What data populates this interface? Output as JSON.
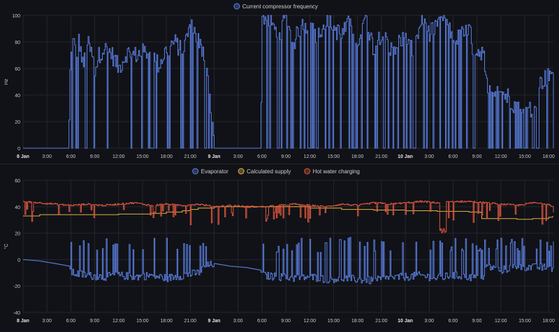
{
  "chart_data": [
    {
      "type": "line",
      "ylabel": "Hz",
      "ylim": [
        0,
        100
      ],
      "yticks": [
        0,
        20,
        40,
        60,
        80,
        100
      ],
      "xtick_labels": [
        "8 Jan",
        "3:00",
        "6:00",
        "9:00",
        "12:00",
        "15:00",
        "18:00",
        "21:00",
        "9 Jan",
        "3:00",
        "6:00",
        "9:00",
        "12:00",
        "15:00",
        "18:00",
        "21:00",
        "10 Jan",
        "3:00",
        "6:00",
        "9:00",
        "12:00",
        "15:00",
        "18:00"
      ],
      "xtick_hours": [
        0,
        3,
        6,
        9,
        12,
        15,
        18,
        21,
        24,
        27,
        30,
        33,
        36,
        39,
        42,
        45,
        48,
        51,
        54,
        57,
        60,
        63,
        66
      ],
      "xlim_hours": [
        0,
        66.6
      ],
      "legend_position": "top-center",
      "series": [
        {
          "name": "Current compressor frequency",
          "color": "#5b7fe0",
          "pattern": "compressor",
          "points": [
            [
              0,
              0
            ],
            [
              5.7,
              0
            ],
            [
              5.8,
              40
            ],
            [
              6.0,
              70
            ],
            [
              6.3,
              82
            ],
            [
              6.6,
              68
            ],
            [
              7.0,
              82
            ],
            [
              7.5,
              60
            ],
            [
              8.0,
              80
            ],
            [
              8.5,
              72
            ],
            [
              9.0,
              60
            ],
            [
              9.5,
              70
            ],
            [
              10.0,
              75
            ],
            [
              11,
              72
            ],
            [
              12,
              60
            ],
            [
              13,
              72
            ],
            [
              14,
              70
            ],
            [
              15,
              72
            ],
            [
              16,
              74
            ],
            [
              17,
              62
            ],
            [
              18,
              75
            ],
            [
              19,
              80
            ],
            [
              20,
              72
            ],
            [
              21,
              95
            ],
            [
              22,
              80
            ],
            [
              23,
              65
            ],
            [
              24,
              0
            ],
            [
              29.8,
              0
            ],
            [
              30,
              100
            ],
            [
              31,
              95
            ],
            [
              32,
              85
            ],
            [
              33,
              98
            ],
            [
              34,
              80
            ],
            [
              35,
              95
            ],
            [
              36,
              90
            ],
            [
              37,
              85
            ],
            [
              38,
              98
            ],
            [
              39,
              90
            ],
            [
              40,
              85
            ],
            [
              41,
              95
            ],
            [
              42,
              80
            ],
            [
              43,
              98
            ],
            [
              44,
              75
            ],
            [
              45,
              88
            ],
            [
              46,
              72
            ],
            [
              47,
              80
            ],
            [
              48,
              85
            ],
            [
              49,
              70
            ],
            [
              50,
              98
            ],
            [
              51,
              85
            ],
            [
              52,
              95
            ],
            [
              53,
              98
            ],
            [
              54,
              80
            ],
            [
              55,
              85
            ],
            [
              56,
              90
            ],
            [
              56.5,
              73
            ],
            [
              57.8,
              73
            ],
            [
              58,
              50
            ],
            [
              59,
              45
            ],
            [
              60,
              42
            ],
            [
              61,
              38
            ],
            [
              62,
              30
            ],
            [
              63,
              25
            ],
            [
              64,
              32
            ],
            [
              65,
              50
            ],
            [
              66,
              55
            ],
            [
              66.5,
              60
            ]
          ]
        }
      ]
    },
    {
      "type": "line",
      "ylabel": "°C",
      "ylim": [
        -40,
        60
      ],
      "yticks": [
        -40,
        -20,
        0,
        20,
        40,
        60
      ],
      "xtick_labels": [
        "8 Jan",
        "3:00",
        "6:00",
        "9:00",
        "12:00",
        "15:00",
        "18:00",
        "21:00",
        "9 Jan",
        "3:00",
        "6:00",
        "9:00",
        "12:00",
        "15:00",
        "18:00",
        "21:00",
        "10 Jan",
        "3:00",
        "6:00",
        "9:00",
        "12:00",
        "15:00",
        "18:00"
      ],
      "xtick_hours": [
        0,
        3,
        6,
        9,
        12,
        15,
        18,
        21,
        24,
        27,
        30,
        33,
        36,
        39,
        42,
        45,
        48,
        51,
        54,
        57,
        60,
        63,
        66
      ],
      "xlim_hours": [
        0,
        66.6
      ],
      "legend_position": "top-center",
      "series": [
        {
          "name": "Evaporator",
          "color": "#5b7fe0",
          "pattern": "evaporator",
          "points": [
            [
              0,
              0
            ],
            [
              2,
              -1
            ],
            [
              4,
              -3
            ],
            [
              5.8,
              -5
            ],
            [
              6,
              -10
            ],
            [
              8,
              -12
            ],
            [
              10,
              -13
            ],
            [
              12,
              -12
            ],
            [
              14,
              -13
            ],
            [
              16,
              -12
            ],
            [
              18,
              -14
            ],
            [
              20,
              -12
            ],
            [
              22,
              -10
            ],
            [
              23,
              -5
            ],
            [
              24,
              -3
            ],
            [
              26,
              -5
            ],
            [
              28,
              -6
            ],
            [
              29.8,
              -8
            ],
            [
              30,
              -12
            ],
            [
              32,
              -13
            ],
            [
              34,
              -14
            ],
            [
              36,
              -13
            ],
            [
              38,
              -15
            ],
            [
              40,
              -14
            ],
            [
              42,
              -15
            ],
            [
              44,
              -16
            ],
            [
              46,
              -14
            ],
            [
              48,
              -13
            ],
            [
              50,
              -12
            ],
            [
              52,
              -14
            ],
            [
              54,
              -12
            ],
            [
              56,
              -13
            ],
            [
              57.8,
              -16
            ],
            [
              58,
              -5
            ],
            [
              60,
              -8
            ],
            [
              62,
              -5
            ],
            [
              64,
              -6
            ],
            [
              66,
              -6
            ],
            [
              66.5,
              -7
            ]
          ]
        },
        {
          "name": "Calculated supply",
          "color": "#e0b441",
          "points": [
            [
              0,
              33
            ],
            [
              2,
              33
            ],
            [
              2.1,
              34
            ],
            [
              10,
              34
            ],
            [
              12,
              34.5
            ],
            [
              16,
              35
            ],
            [
              18,
              36
            ],
            [
              19,
              36
            ],
            [
              20,
              37
            ],
            [
              21,
              38
            ],
            [
              22,
              39
            ],
            [
              24,
              40
            ],
            [
              30,
              40
            ],
            [
              36,
              39
            ],
            [
              40,
              38
            ],
            [
              44,
              37.5
            ],
            [
              48,
              37
            ],
            [
              52,
              36.5
            ],
            [
              56,
              36
            ],
            [
              57.5,
              35.5
            ],
            [
              57.6,
              31
            ],
            [
              61,
              31
            ],
            [
              62,
              30.5
            ],
            [
              64,
              31
            ],
            [
              66,
              32
            ],
            [
              66.5,
              33
            ]
          ]
        },
        {
          "name": "Hot water charging",
          "color": "#e0573f",
          "pattern": "hotwater",
          "points": [
            [
              0,
              44
            ],
            [
              2,
              43
            ],
            [
              4,
              42
            ],
            [
              6,
              41
            ],
            [
              8,
              42
            ],
            [
              10,
              41
            ],
            [
              12,
              42
            ],
            [
              14,
              43
            ],
            [
              16,
              41
            ],
            [
              18,
              42
            ],
            [
              20,
              41
            ],
            [
              22,
              42
            ],
            [
              24,
              40
            ],
            [
              26,
              41
            ],
            [
              28,
              40
            ],
            [
              30,
              40
            ],
            [
              32,
              41
            ],
            [
              34,
              42
            ],
            [
              36,
              41
            ],
            [
              38,
              40
            ],
            [
              40,
              42
            ],
            [
              42,
              41
            ],
            [
              44,
              43
            ],
            [
              46,
              42
            ],
            [
              48,
              43
            ],
            [
              50,
              44
            ],
            [
              52,
              43
            ],
            [
              54,
              44
            ],
            [
              56,
              44
            ],
            [
              58,
              43
            ],
            [
              60,
              42
            ],
            [
              62,
              41
            ],
            [
              64,
              43
            ],
            [
              66,
              42
            ],
            [
              66.5,
              40
            ]
          ]
        }
      ]
    }
  ]
}
